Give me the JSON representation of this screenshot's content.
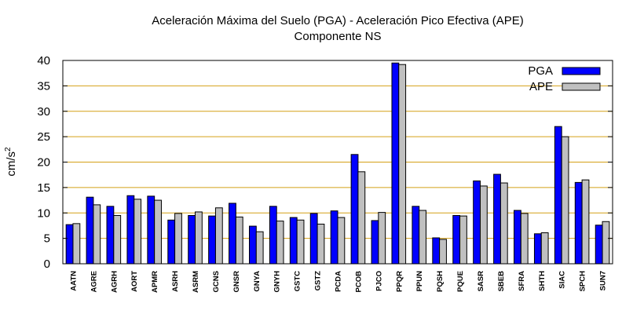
{
  "chart_data": {
    "type": "bar",
    "title": "Aceleración Máxima del Suelo (PGA) -  Aceleración Pico Efectiva (APE)",
    "subtitle": "Componente NS",
    "xlabel": "",
    "ylabel": "cm/s",
    "ylabel_superscript": "2",
    "ylim": [
      0,
      40
    ],
    "yticks": [
      "0",
      "5",
      "10",
      "15",
      "20",
      "25",
      "30",
      "35",
      "40"
    ],
    "grid": "horizontal",
    "legend_position": "top-right",
    "categories": [
      "AATN",
      "AGRE",
      "AGRH",
      "AORT",
      "APMR",
      "ASRH",
      "ASRM",
      "GCNS",
      "GNSR",
      "GNYA",
      "GNYH",
      "GSTC",
      "GSTZ",
      "PCDA",
      "PCOB",
      "PJCO",
      "PPQR",
      "PPUN",
      "PQSH",
      "PQUE",
      "SASR",
      "SBEB",
      "SFRA",
      "SHTH",
      "SIAC",
      "SPCH",
      "SUN7"
    ],
    "series": [
      {
        "name": "PGA",
        "color": "#0000ff",
        "values": [
          7.7,
          13.1,
          11.3,
          13.4,
          13.3,
          8.6,
          9.5,
          9.4,
          11.9,
          7.4,
          11.3,
          9.1,
          9.9,
          10.4,
          21.5,
          8.5,
          39.5,
          11.3,
          5.1,
          9.5,
          16.3,
          17.6,
          10.5,
          5.9,
          27.0,
          16.0,
          7.6
        ]
      },
      {
        "name": "APE",
        "color": "#c0c0c0",
        "values": [
          7.9,
          11.6,
          9.5,
          12.7,
          12.5,
          9.9,
          10.2,
          11.0,
          9.2,
          6.3,
          8.4,
          8.6,
          7.8,
          9.1,
          18.1,
          10.1,
          39.2,
          10.5,
          4.8,
          9.4,
          15.3,
          15.9,
          9.9,
          6.1,
          25.0,
          16.5,
          8.3
        ]
      }
    ]
  }
}
